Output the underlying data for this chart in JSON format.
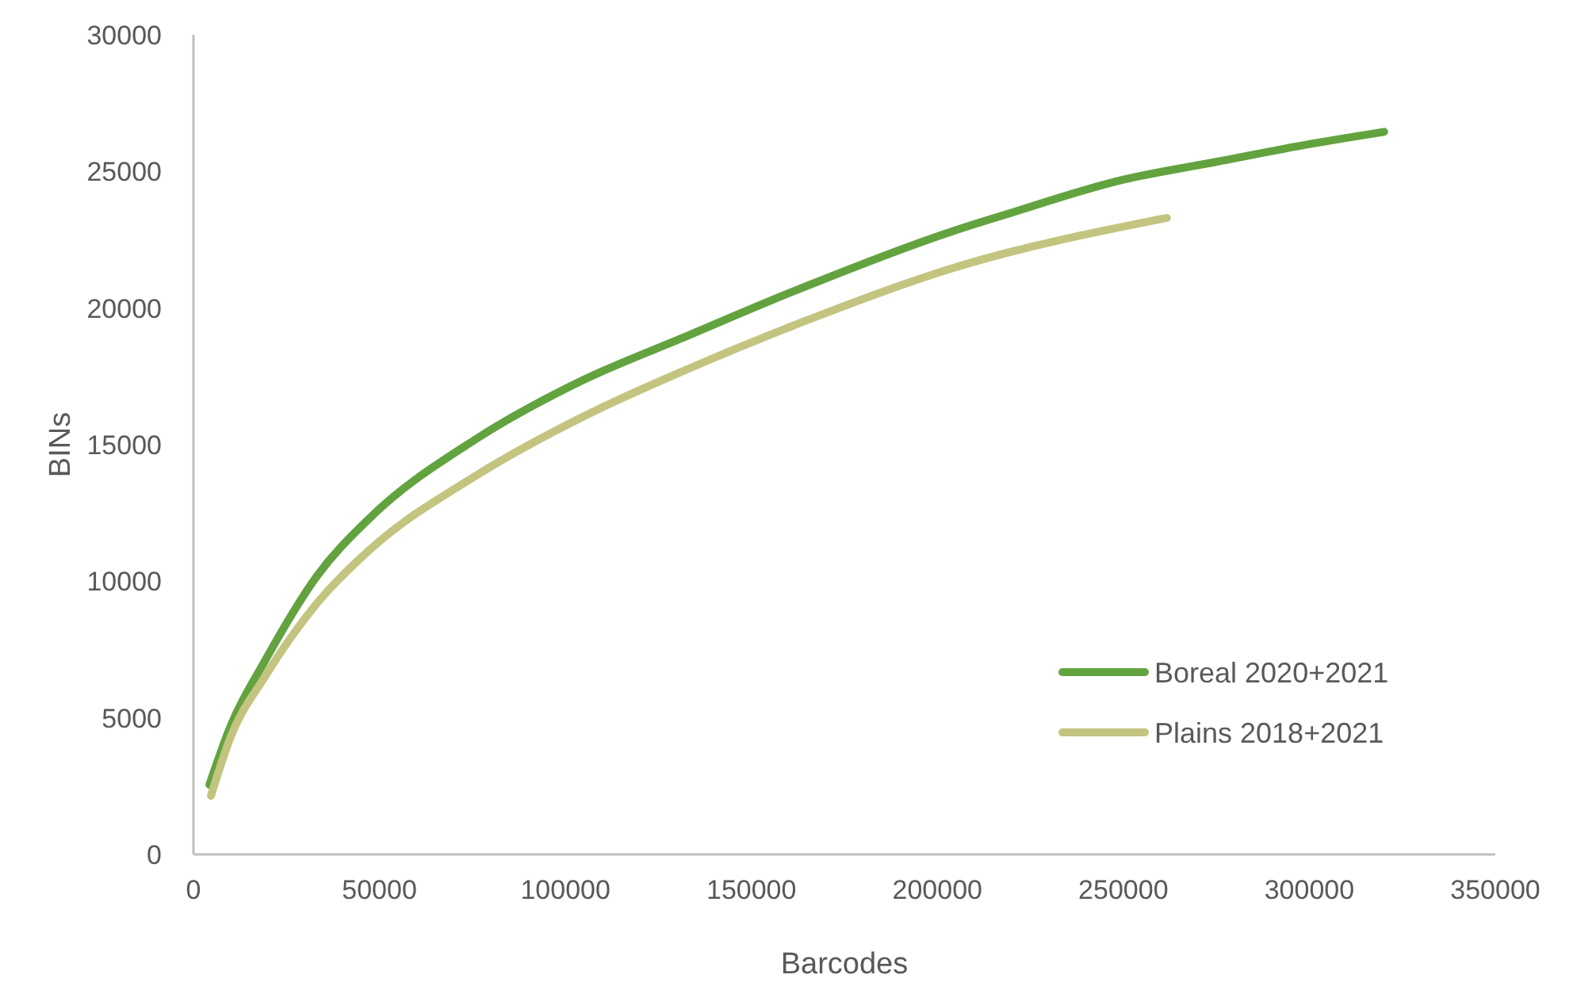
{
  "chart_data": {
    "type": "line",
    "xlabel": "Barcodes",
    "ylabel": "BINs",
    "xlim": [
      0,
      350000
    ],
    "xticks": [
      0,
      50000,
      100000,
      150000,
      200000,
      250000,
      300000,
      350000
    ],
    "ylim": [
      0,
      30000
    ],
    "yticks": [
      0,
      5000,
      10000,
      15000,
      20000,
      25000,
      30000
    ],
    "grid": false,
    "legend": "bottom right",
    "marker": "none",
    "line_style": "solid",
    "series": [
      {
        "name": "Boreal 2020+2021",
        "color": "#62a33f",
        "x": [
          4300,
          10000,
          19200,
          33250,
          47300,
          75900,
          104400,
          132600,
          161100,
          203800,
          217800,
          250000,
          274900,
          300000,
          320100
        ],
        "values": [
          2550,
          4700,
          7080,
          10200,
          12300,
          15200,
          17340,
          18970,
          20600,
          22800,
          23400,
          24700,
          25350,
          26000,
          26450
        ]
      },
      {
        "name": "Plains 2018+2021",
        "color": "#c3c47f",
        "x": [
          4700,
          10000,
          19200,
          33250,
          47300,
          75900,
          104400,
          132600,
          161100,
          203800,
          261700
        ],
        "values": [
          2150,
          4300,
          6500,
          9200,
          11140,
          13860,
          16000,
          17750,
          19350,
          21450,
          23300
        ]
      }
    ]
  }
}
